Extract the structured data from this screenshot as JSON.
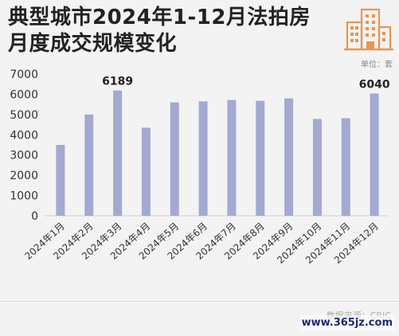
{
  "header": {
    "title_line1": "典型城市2024年1-12月法拍房",
    "title_line2": "月度成交规模变化",
    "unit": "单位：套"
  },
  "footer": {
    "source": "数据来源：CRIC",
    "site": "www.365jz.com"
  },
  "colors": {
    "bar": "#a4a9d2",
    "axis_text": "#333333",
    "grid": "#cccccc",
    "logo": "#e8964f"
  },
  "chart_data": {
    "type": "bar",
    "title": "典型城市2024年1-12月法拍房月度成交规模变化",
    "ylabel": "单位：套",
    "xlabel": "",
    "categories": [
      "2024年1月",
      "2024年2月",
      "2024年3月",
      "2024年4月",
      "2024年5月",
      "2024年6月",
      "2024年7月",
      "2024年8月",
      "2024年9月",
      "2024年10月",
      "2024年11月",
      "2024年12月"
    ],
    "values": [
      3500,
      5000,
      6189,
      4350,
      5600,
      5650,
      5720,
      5680,
      5800,
      4780,
      4820,
      6040
    ],
    "value_labels": [
      "",
      "",
      "6189",
      "",
      "",
      "",
      "",
      "",
      "",
      "",
      "",
      "6040"
    ],
    "yticks": [
      0,
      1000,
      2000,
      3000,
      4000,
      5000,
      6000,
      7000
    ],
    "ylim": [
      0,
      7000
    ],
    "grid": false,
    "legend": "none"
  }
}
